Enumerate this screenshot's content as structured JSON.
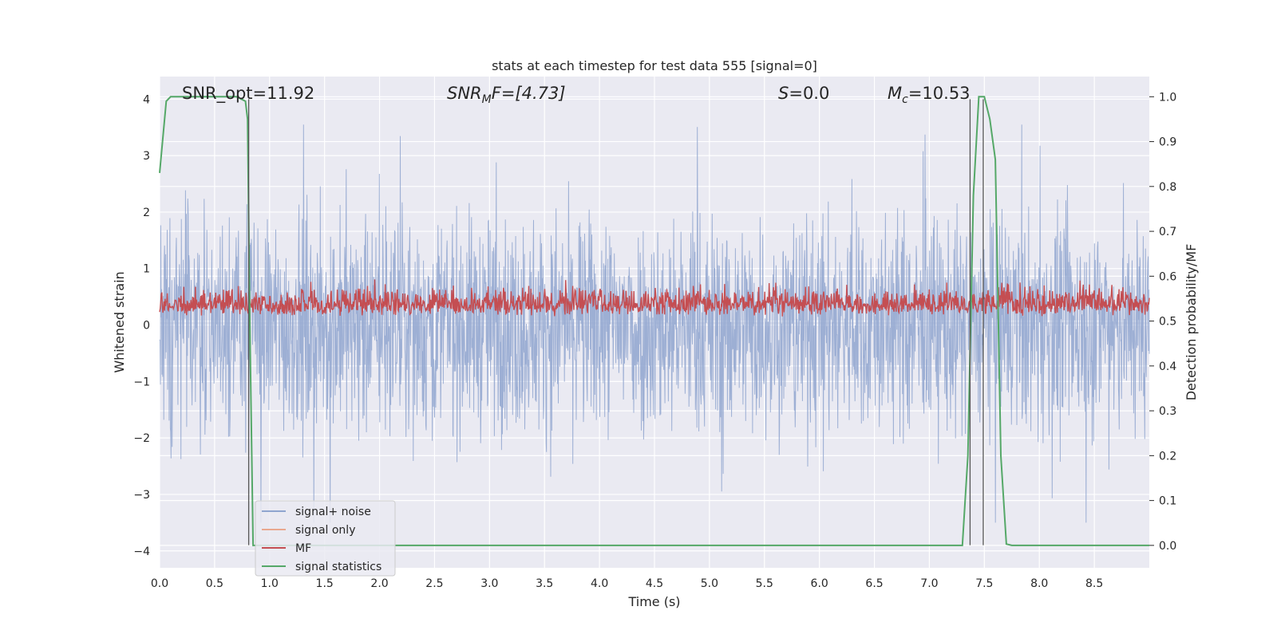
{
  "chart_data": {
    "type": "line",
    "title": "stats at each timestep for test data 555 [signal=0]",
    "xlabel": "Time (s)",
    "ylabel_left": "Whitened strain",
    "ylabel_right": "Detection probability/MF",
    "xlim": [
      0.0,
      9.0
    ],
    "ylim_left": [
      -4.3,
      4.4
    ],
    "ylim_right": [
      -0.05,
      1.045
    ],
    "x_ticks": [
      "0.0",
      "0.5",
      "1.0",
      "1.5",
      "2.0",
      "2.5",
      "3.0",
      "3.5",
      "4.0",
      "4.5",
      "5.0",
      "5.5",
      "6.0",
      "6.5",
      "7.0",
      "7.5",
      "8.0",
      "8.5"
    ],
    "y_left_ticks": [
      "−4",
      "−3",
      "−2",
      "−1",
      "0",
      "1",
      "2",
      "3",
      "4"
    ],
    "y_right_ticks": [
      "0.0",
      "0.1",
      "0.2",
      "0.3",
      "0.4",
      "0.5",
      "0.6",
      "0.7",
      "0.8",
      "0.9",
      "1.0"
    ],
    "grid": true,
    "legend_position": "lower-left",
    "annotations": [
      {
        "text": "SNR_opt=11.92"
      },
      {
        "text": "SNR",
        "sub": "M",
        "tail": "F=[4.73]"
      },
      {
        "text": "S",
        "tail": "=0.0"
      },
      {
        "text": "M",
        "sub": "c",
        "tail": "=10.53"
      }
    ],
    "series": [
      {
        "name": "signal+ noise",
        "axis": "left",
        "color": "#8fa5cf",
        "description": "whitened noise, amplitude roughly ±1.6 with peaks to ±3.5"
      },
      {
        "name": "signal only",
        "axis": "left",
        "color": "#e9a88f",
        "values": []
      },
      {
        "name": "MF",
        "axis": "right",
        "color": "#c44e52",
        "baseline": 0.52,
        "range": [
          0.5,
          0.66
        ]
      },
      {
        "name": "signal statistics",
        "axis": "right",
        "color": "#55a868",
        "x": [
          0.0,
          0.06,
          0.1,
          0.2,
          0.5,
          0.7,
          0.78,
          0.8,
          0.82,
          0.85,
          0.9,
          7.3,
          7.35,
          7.4,
          7.45,
          7.5,
          7.55,
          7.6,
          7.65,
          7.7,
          7.75,
          9.0
        ],
        "values": [
          0.83,
          0.99,
          1.0,
          1.0,
          1.0,
          1.0,
          0.99,
          0.95,
          0.5,
          0.0,
          0.0,
          0.0,
          0.2,
          0.78,
          1.0,
          1.0,
          0.95,
          0.86,
          0.2,
          0.003,
          0.0,
          0.0
        ]
      }
    ],
    "vertical_lines_x": [
      0.81,
      7.37,
      7.49
    ]
  }
}
